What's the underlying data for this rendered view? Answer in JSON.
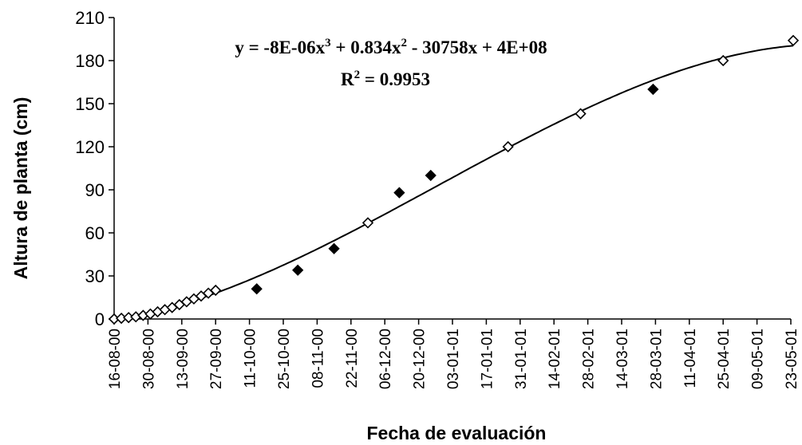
{
  "chart_data": {
    "type": "scatter",
    "xlabel": "Fecha de evaluación",
    "ylabel": "Altura de planta (cm)",
    "ylim": [
      0,
      210
    ],
    "yticks": [
      0,
      30,
      60,
      90,
      120,
      150,
      180,
      210
    ],
    "xlim": [
      "2000-08-16",
      "2001-05-23"
    ],
    "xticks": [
      "16-08-00",
      "30-08-00",
      "13-09-00",
      "27-09-00",
      "11-10-00",
      "25-10-00",
      "08-11-00",
      "22-11-00",
      "06-12-00",
      "20-12-00",
      "03-01-01",
      "17-01-01",
      "31-01-01",
      "14-02-01",
      "28-02-01",
      "14-03-01",
      "28-03-01",
      "11-04-01",
      "25-04-01",
      "09-05-01",
      "23-05-01"
    ],
    "grid": false,
    "series": [
      {
        "marker": "diamond",
        "points": [
          {
            "x": "2000-08-16",
            "y": 0,
            "marker_fill": "hollow"
          },
          {
            "x": "2000-08-19",
            "y": 0.5,
            "marker_fill": "hollow"
          },
          {
            "x": "2000-08-22",
            "y": 1,
            "marker_fill": "hollow"
          },
          {
            "x": "2000-08-25",
            "y": 1.5,
            "marker_fill": "hollow"
          },
          {
            "x": "2000-08-28",
            "y": 2.5,
            "marker_fill": "hollow"
          },
          {
            "x": "2000-08-31",
            "y": 3.5,
            "marker_fill": "hollow"
          },
          {
            "x": "2000-09-03",
            "y": 5,
            "marker_fill": "hollow"
          },
          {
            "x": "2000-09-06",
            "y": 6.5,
            "marker_fill": "hollow"
          },
          {
            "x": "2000-09-09",
            "y": 8,
            "marker_fill": "hollow"
          },
          {
            "x": "2000-09-12",
            "y": 10,
            "marker_fill": "hollow"
          },
          {
            "x": "2000-09-15",
            "y": 12,
            "marker_fill": "hollow"
          },
          {
            "x": "2000-09-18",
            "y": 14,
            "marker_fill": "hollow"
          },
          {
            "x": "2000-09-21",
            "y": 16,
            "marker_fill": "hollow"
          },
          {
            "x": "2000-09-24",
            "y": 18,
            "marker_fill": "hollow"
          },
          {
            "x": "2000-09-27",
            "y": 20,
            "marker_fill": "hollow"
          },
          {
            "x": "2000-10-14",
            "y": 21,
            "marker_fill": "filled"
          },
          {
            "x": "2000-10-31",
            "y": 34,
            "marker_fill": "filled"
          },
          {
            "x": "2000-11-15",
            "y": 49,
            "marker_fill": "filled"
          },
          {
            "x": "2000-11-29",
            "y": 67,
            "marker_fill": "hollow"
          },
          {
            "x": "2000-12-12",
            "y": 88,
            "marker_fill": "filled"
          },
          {
            "x": "2000-12-25",
            "y": 100,
            "marker_fill": "filled"
          },
          {
            "x": "2001-01-26",
            "y": 120,
            "marker_fill": "hollow"
          },
          {
            "x": "2001-02-25",
            "y": 143,
            "marker_fill": "hollow"
          },
          {
            "x": "2001-03-27",
            "y": 160,
            "marker_fill": "filled"
          },
          {
            "x": "2001-04-25",
            "y": 180,
            "marker_fill": "hollow"
          },
          {
            "x": "2001-05-24",
            "y": 194,
            "marker_fill": "hollow"
          }
        ]
      }
    ],
    "trendline": {
      "type": "polynomial",
      "order": 3,
      "equation": {
        "prefix": "y = -8E-06x",
        "exp1": "3",
        "mid": " + 0.834x",
        "exp2": "2",
        "suffix": " - 30758x + 4E+08"
      },
      "r_squared": {
        "base": "R",
        "exp": "2",
        "value": " = 0.9953"
      }
    }
  }
}
